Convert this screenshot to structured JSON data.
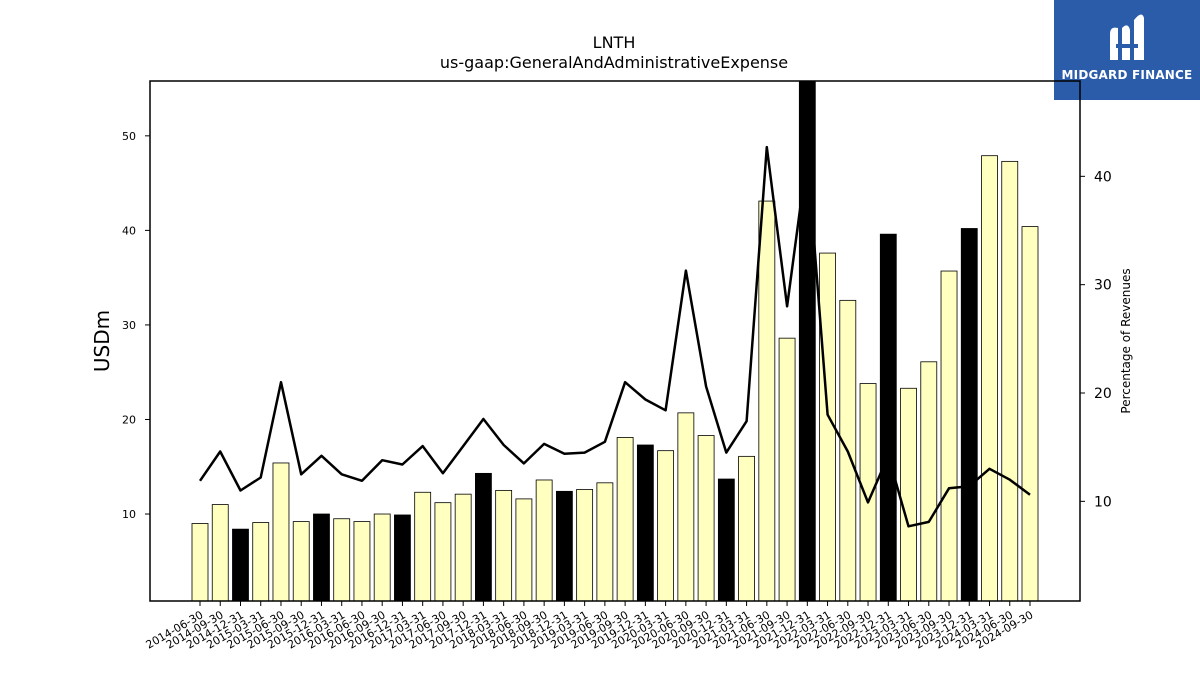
{
  "header": {
    "title": "LNTH",
    "subtitle": "us-gaap:GeneralAndAdministrativeExpense"
  },
  "logo": {
    "text": "MIDGARD FINANCE",
    "bg": "#2a5caa"
  },
  "colors": {
    "bar_default": "#ffffc0",
    "bar_highlight": "#000000",
    "line": "#000000"
  },
  "chart_data": {
    "type": "bar",
    "title": "LNTH",
    "subtitle": "us-gaap:GeneralAndAdministrativeExpense",
    "ylabel": "USDm",
    "y2label": "Percentage of Revenues",
    "ylim": [
      0.8,
      55.8
    ],
    "y2lim": [
      0.8,
      48.8
    ],
    "yticks": [
      10,
      20,
      30,
      40,
      50
    ],
    "y2ticks": [
      10,
      20,
      30,
      40
    ],
    "grid": false,
    "categories": [
      "2014-06-30",
      "2014-09-30",
      "2014-12-31",
      "2015-03-31",
      "2015-06-30",
      "2015-09-30",
      "2015-12-31",
      "2016-03-31",
      "2016-06-30",
      "2016-09-30",
      "2016-12-31",
      "2017-03-31",
      "2017-06-30",
      "2017-09-30",
      "2017-12-31",
      "2018-03-31",
      "2018-06-30",
      "2018-09-30",
      "2018-12-31",
      "2019-03-31",
      "2019-06-30",
      "2019-09-30",
      "2019-12-31",
      "2020-03-31",
      "2020-06-30",
      "2020-09-30",
      "2020-12-31",
      "2021-03-31",
      "2021-06-30",
      "2021-09-30",
      "2021-12-31",
      "2022-03-31",
      "2022-06-30",
      "2022-09-30",
      "2022-12-31",
      "2023-03-31",
      "2023-06-30",
      "2023-09-30",
      "2023-12-31",
      "2024-03-31",
      "2024-06-30",
      "2024-09-30"
    ],
    "series": [
      {
        "type": "bar",
        "axis": "left",
        "values": [
          9.0,
          11.0,
          8.4,
          9.1,
          15.4,
          9.2,
          10.0,
          9.5,
          9.2,
          10.0,
          9.9,
          12.3,
          11.2,
          12.1,
          14.3,
          12.5,
          11.6,
          13.6,
          12.4,
          12.6,
          13.3,
          18.1,
          17.3,
          16.7,
          20.7,
          18.3,
          13.7,
          16.1,
          43.1,
          28.6,
          56.0,
          37.6,
          32.6,
          23.8,
          39.6,
          23.3,
          26.1,
          35.7,
          40.2,
          47.9,
          47.3,
          40.4
        ],
        "highlight_indices": [
          2,
          6,
          10,
          14,
          18,
          22,
          26,
          30,
          34,
          38
        ]
      },
      {
        "type": "line",
        "axis": "right",
        "values": [
          11.9,
          14.6,
          11.0,
          12.2,
          21.0,
          12.5,
          14.2,
          12.5,
          11.9,
          13.8,
          13.4,
          15.1,
          12.6,
          15.1,
          17.6,
          15.2,
          13.5,
          15.3,
          14.4,
          14.5,
          15.5,
          21.0,
          19.4,
          18.4,
          31.3,
          20.6,
          14.5,
          17.4,
          42.7,
          28.0,
          42.0,
          18.0,
          14.6,
          9.9,
          14.2,
          7.7,
          8.1,
          11.2,
          11.4,
          13.0,
          12.0,
          10.6
        ]
      }
    ]
  }
}
